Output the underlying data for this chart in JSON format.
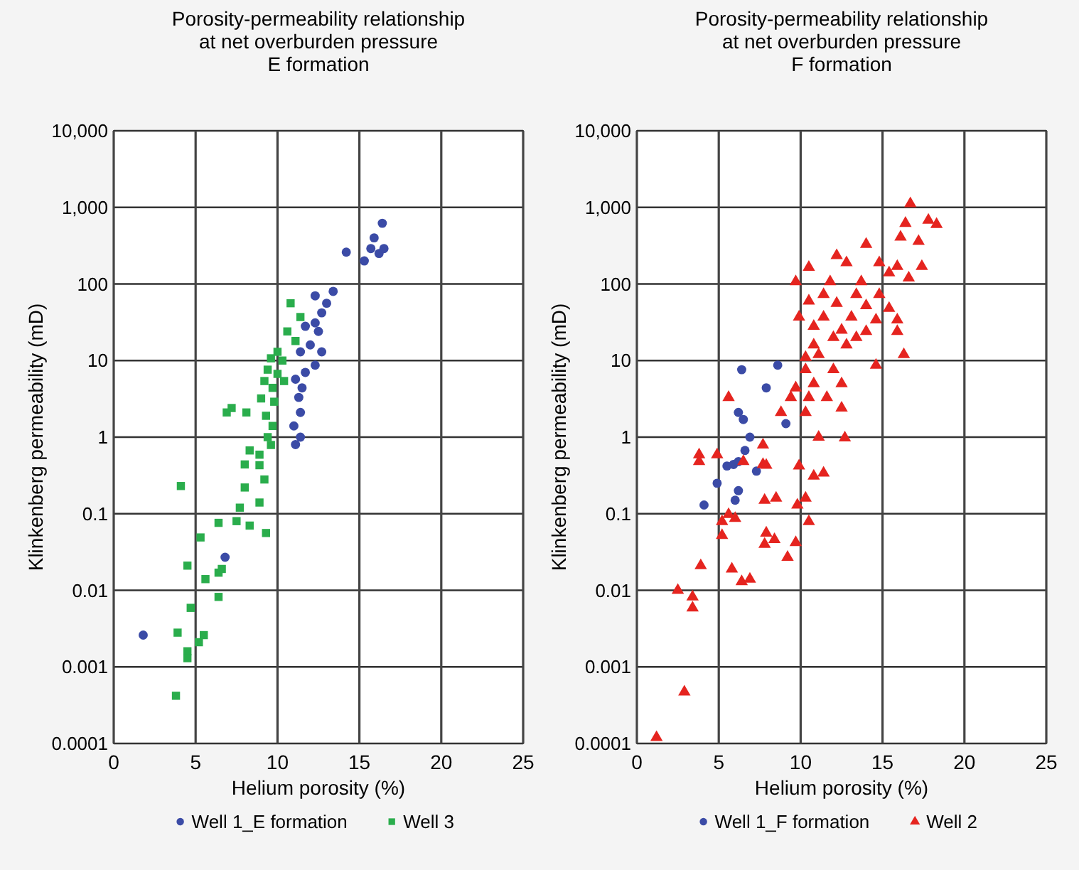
{
  "chart_data": [
    {
      "type": "scatter",
      "title": "Porosity-permeability relationship\nat net overburden pressure\nE formation",
      "xlabel": "Helium porosity (%)",
      "ylabel": "Klinkenberg permeability (mD)",
      "log": "y",
      "grid": true,
      "legend": "bottom",
      "xlim": [
        0,
        25
      ],
      "xticks": [
        0,
        5,
        10,
        15,
        20,
        25
      ],
      "ylim": [
        0.0001,
        10000
      ],
      "yticks": [
        {
          "value": 0.0001,
          "label": "0.0001"
        },
        {
          "value": 0.001,
          "label": "0.001"
        },
        {
          "value": 0.01,
          "label": "0.01"
        },
        {
          "value": 0.1,
          "label": "0.1"
        },
        1,
        10,
        100,
        {
          "value": 1000,
          "label": "1,000"
        },
        {
          "value": 10000,
          "label": "10,000"
        }
      ],
      "series": [
        {
          "name": "Well 1_E formation",
          "color": "#3b4ba6",
          "marker": "circle",
          "x": [
            16.4,
            15.9,
            15.7,
            14.2,
            15.3,
            16.2,
            16.5,
            13.4,
            13.0,
            12.3,
            12.7,
            12.3,
            11.7,
            12.5,
            12.0,
            12.7,
            11.4,
            12.3,
            11.7,
            11.1,
            11.5,
            11.3,
            11.4,
            11.0,
            11.4,
            11.1,
            6.8,
            1.8
          ],
          "values": [
            620,
            400,
            290,
            260,
            200,
            250,
            290,
            80,
            56,
            70,
            42,
            31,
            28,
            24,
            16,
            13,
            13,
            8.7,
            7,
            5.7,
            4.4,
            3.3,
            2.1,
            1.4,
            1.0,
            0.8,
            0.027,
            0.0026
          ]
        },
        {
          "name": "Well 3",
          "color": "#2aad4c",
          "marker": "square",
          "x": [
            10.8,
            11.4,
            10.6,
            11.1,
            10.0,
            9.6,
            10.3,
            9.4,
            10.0,
            9.2,
            10.4,
            9.7,
            9.0,
            9.8,
            7.2,
            6.9,
            8.1,
            9.3,
            9.7,
            9.4,
            8.3,
            8.9,
            9.6,
            8.0,
            8.9,
            9.2,
            8.0,
            4.1,
            8.9,
            7.7,
            7.5,
            8.3,
            9.3,
            6.4,
            5.3,
            4.5,
            5.6,
            6.4,
            6.6,
            6.4,
            4.7,
            3.9,
            5.5,
            5.2,
            4.5,
            4.5,
            3.8
          ],
          "values": [
            56,
            37,
            24,
            18,
            13,
            10.7,
            10,
            7.6,
            6.7,
            5.4,
            5.4,
            4.4,
            3.2,
            2.9,
            2.4,
            2.1,
            2.1,
            1.9,
            1.4,
            1.0,
            0.67,
            0.59,
            0.79,
            0.44,
            0.43,
            0.28,
            0.22,
            0.23,
            0.14,
            0.12,
            0.08,
            0.07,
            0.056,
            0.076,
            0.049,
            0.021,
            0.014,
            0.017,
            0.019,
            0.0082,
            0.0059,
            0.0028,
            0.0026,
            0.0021,
            0.0016,
            0.0013,
            0.00042
          ]
        }
      ]
    },
    {
      "type": "scatter",
      "title": "Porosity-permeability relationship\nat net overburden pressure\nF formation",
      "xlabel": "Helium porosity (%)",
      "ylabel": "Klinkenberg permeability (mD)",
      "log": "y",
      "grid": true,
      "legend": "bottom",
      "xlim": [
        0,
        25
      ],
      "xticks": [
        0,
        5,
        10,
        15,
        20,
        25
      ],
      "ylim": [
        0.0001,
        10000
      ],
      "yticks": [
        {
          "value": 0.0001,
          "label": "0.0001"
        },
        {
          "value": 0.001,
          "label": "0.001"
        },
        {
          "value": 0.01,
          "label": "0.01"
        },
        {
          "value": 0.1,
          "label": "0.1"
        },
        1,
        10,
        100,
        {
          "value": 1000,
          "label": "1,000"
        },
        {
          "value": 10000,
          "label": "10,000"
        }
      ],
      "series": [
        {
          "name": "Well 1_F formation",
          "color": "#3b4ba6",
          "marker": "circle",
          "x": [
            8.6,
            7.9,
            6.4,
            6.2,
            6.5,
            9.1,
            6.9,
            6.6,
            5.9,
            6.2,
            5.5,
            7.3,
            4.9,
            6.2,
            6.0,
            4.1
          ],
          "values": [
            8.7,
            4.4,
            7.6,
            2.1,
            1.7,
            1.5,
            1.0,
            0.67,
            0.44,
            0.48,
            0.42,
            0.36,
            0.25,
            0.2,
            0.15,
            0.13
          ]
        },
        {
          "name": "Well 2",
          "color": "#e5241f",
          "marker": "triangle",
          "x": [
            16.7,
            16.4,
            18.3,
            17.8,
            16.1,
            17.2,
            14.0,
            12.2,
            12.8,
            14.8,
            15.9,
            17.4,
            10.5,
            15.4,
            16.6,
            11.8,
            9.7,
            13.7,
            11.4,
            13.4,
            14.8,
            10.5,
            12.2,
            14.0,
            15.4,
            9.9,
            11.4,
            13.1,
            14.6,
            15.9,
            10.8,
            12.5,
            14.0,
            12.0,
            13.4,
            15.9,
            10.8,
            12.8,
            16.3,
            10.3,
            11.1,
            12.0,
            14.6,
            10.3,
            12.5,
            10.8,
            9.7,
            10.5,
            11.6,
            9.4,
            10.3,
            12.5,
            8.8,
            5.6,
            11.1,
            12.7,
            7.7,
            3.8,
            4.9,
            7.7,
            6.5,
            7.9,
            9.9,
            11.4,
            10.8,
            7.8,
            8.5,
            9.8,
            10.3,
            5.6,
            6.0,
            5.2,
            10.5,
            5.2,
            7.9,
            8.4,
            7.8,
            9.7,
            9.2,
            3.9,
            5.8,
            6.4,
            6.9,
            2.5,
            3.4,
            3.4,
            2.9,
            1.2,
            3.8
          ],
          "values": [
            1120,
            620,
            600,
            680,
            410,
            360,
            330,
            235,
            190,
            190,
            170,
            170,
            165,
            140,
            120,
            107,
            107,
            107,
            73,
            73,
            73,
            60,
            56,
            52,
            48,
            37,
            37,
            37,
            34,
            34,
            28,
            25,
            24,
            20,
            20,
            24,
            16,
            16,
            12,
            11,
            12,
            7.6,
            8.7,
            7.6,
            5,
            5,
            4.4,
            3.3,
            3.3,
            3.3,
            2.1,
            2.4,
            2.1,
            3.3,
            1.0,
            0.98,
            0.79,
            0.59,
            0.59,
            0.44,
            0.48,
            0.43,
            0.42,
            0.34,
            0.31,
            0.15,
            0.16,
            0.13,
            0.16,
            0.098,
            0.087,
            0.079,
            0.079,
            0.052,
            0.056,
            0.046,
            0.04,
            0.042,
            0.027,
            0.021,
            0.019,
            0.013,
            0.014,
            0.01,
            0.0082,
            0.0059,
            0.00047,
            0.00012,
            0.48
          ]
        }
      ]
    }
  ]
}
